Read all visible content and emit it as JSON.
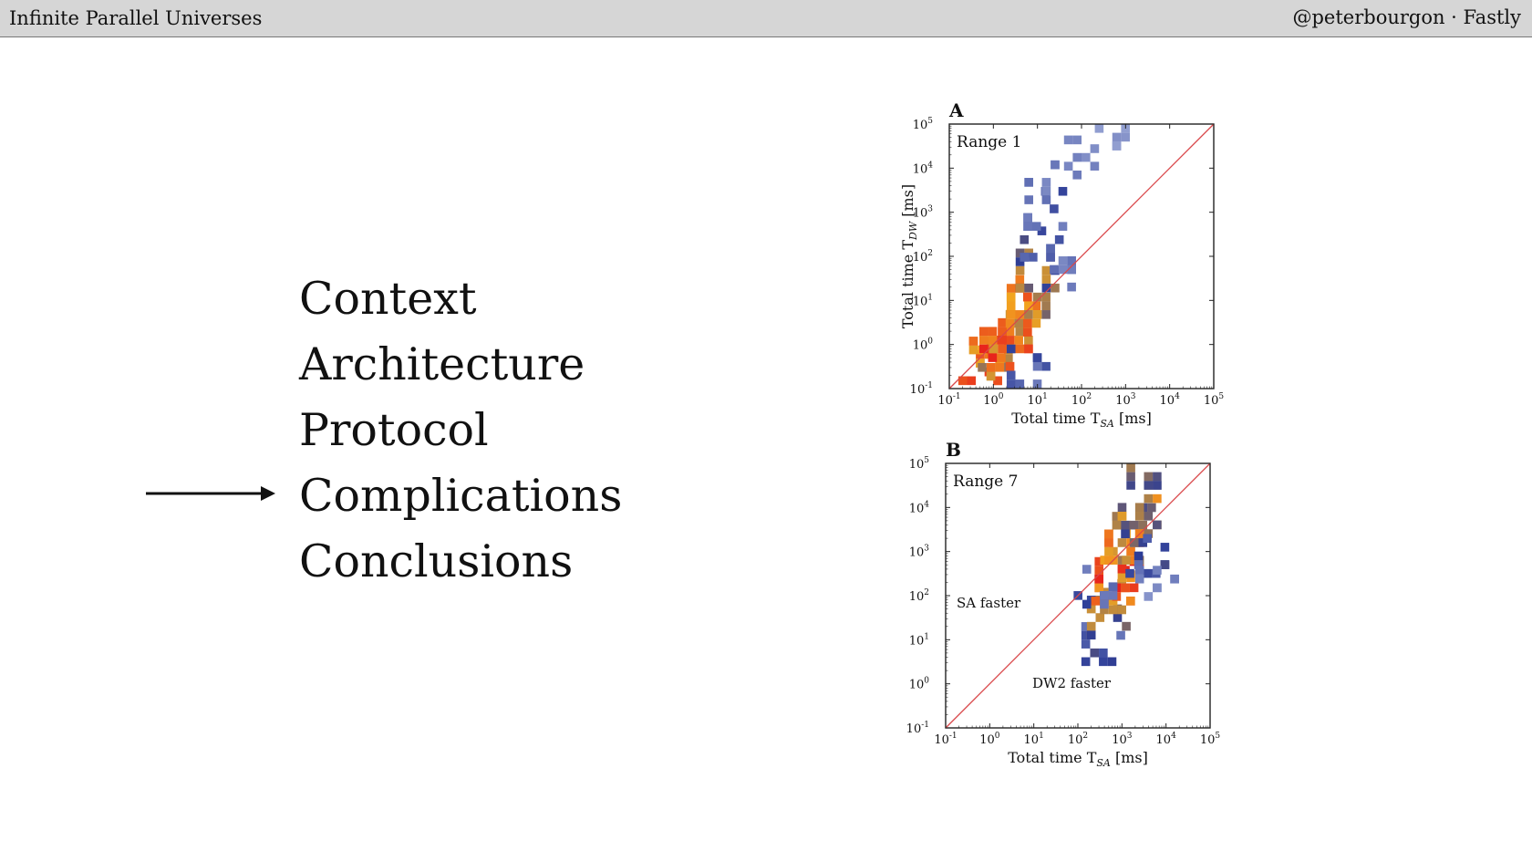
{
  "header": {
    "title": "Infinite Parallel Universes",
    "author": "@peterbourgon · Fastly"
  },
  "agenda": {
    "items": [
      "Context",
      "Architecture",
      "Protocol",
      "Complications",
      "Conclusions"
    ],
    "current_index": 3
  },
  "colors": {
    "diagonal": "#d9474a",
    "axis": "#222222",
    "heat_low": "#b7c3e6",
    "heat_mid": "#2c3c96",
    "heat_high": "#f2a51f",
    "heat_peak": "#e8241c"
  },
  "chart_data": [
    {
      "type": "heatmap",
      "panel_letter": "A",
      "range_label": "Range 1",
      "xlabel": "Total time T_SA [ms]",
      "ylabel": "Total time T_DW [ms]",
      "x_scale": "log",
      "y_scale": "log",
      "xlim": [
        0.1,
        100000
      ],
      "ylim": [
        0.1,
        100000
      ],
      "tick_exponents": [
        -1,
        0,
        1,
        2,
        3,
        4,
        5
      ],
      "reference_line": "y = x",
      "annotations": [],
      "clusters": [
        {
          "x": 0.4,
          "y": 0.3,
          "level": 0.9
        },
        {
          "x": 0.7,
          "y": 0.6,
          "level": 0.85
        },
        {
          "x": 1.2,
          "y": 1.0,
          "level": 1.0
        },
        {
          "x": 2,
          "y": 2.5,
          "level": 0.9
        },
        {
          "x": 3,
          "y": 6,
          "level": 0.85
        },
        {
          "x": 5,
          "y": 15,
          "level": 0.75
        },
        {
          "x": 8,
          "y": 60,
          "level": 0.55
        },
        {
          "x": 10,
          "y": 300,
          "level": 0.4
        },
        {
          "x": 12,
          "y": 1500,
          "level": 0.3
        },
        {
          "x": 8,
          "y": 6000,
          "level": 0.2
        },
        {
          "x": 30,
          "y": 40,
          "level": 0.25
        },
        {
          "x": 5,
          "y": 0.4,
          "level": 0.3
        },
        {
          "x": 500,
          "y": 100000,
          "level": 0.15
        },
        {
          "x": 100,
          "y": 22000,
          "level": 0.2
        }
      ]
    },
    {
      "type": "heatmap",
      "panel_letter": "B",
      "range_label": "Range 7",
      "xlabel": "Total time T_SA [ms]",
      "ylabel": "",
      "x_scale": "log",
      "y_scale": "log",
      "xlim": [
        0.1,
        100000
      ],
      "ylim": [
        0.1,
        100000
      ],
      "tick_exponents": [
        -1,
        0,
        1,
        2,
        3,
        4,
        5
      ],
      "reference_line": "y = x",
      "annotations": [
        "SA faster",
        "DW2 faster"
      ],
      "clusters": [
        {
          "x": 300,
          "y": 10,
          "level": 0.35
        },
        {
          "x": 400,
          "y": 40,
          "level": 0.55
        },
        {
          "x": 500,
          "y": 150,
          "level": 0.85
        },
        {
          "x": 600,
          "y": 300,
          "level": 1.0
        },
        {
          "x": 800,
          "y": 800,
          "level": 0.9
        },
        {
          "x": 1000,
          "y": 2000,
          "level": 0.75
        },
        {
          "x": 1500,
          "y": 5000,
          "level": 0.6
        },
        {
          "x": 2000,
          "y": 8000,
          "level": 0.7
        },
        {
          "x": 3000,
          "y": 1000,
          "level": 0.35
        },
        {
          "x": 5000,
          "y": 300,
          "level": 0.2
        },
        {
          "x": 2000,
          "y": 100000,
          "level": 0.6
        },
        {
          "x": 200,
          "y": 200,
          "level": 0.3
        }
      ]
    }
  ]
}
